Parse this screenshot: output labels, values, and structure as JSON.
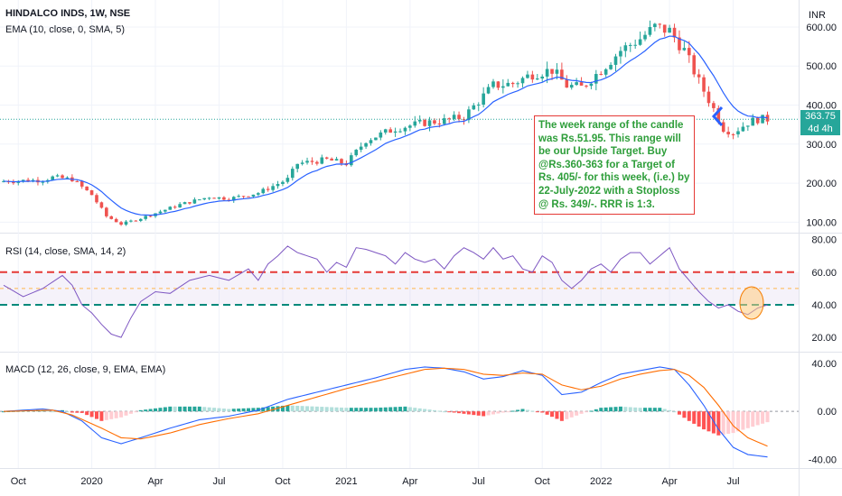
{
  "header": {
    "symbol_line": "HINDALCO INDS, 1W, NSE",
    "ema_label": "EMA (10, close, 0, SMA, 5)",
    "rsi_label": "RSI (14, close, SMA, 14, 2)",
    "macd_label": "MACD (12, 26, close, 9, EMA, EMA)",
    "currency": "INR"
  },
  "price_badge": {
    "price": "363.75",
    "countdown": "4d 4h"
  },
  "annotation": {
    "text": "The week range of the candle was Rs.51.95. This range will be our Upside Target. Buy @Rs.360-363 for a Target of Rs. 405/- for this week, (i.e.) by 22-July-2022 with a Stoploss @ Rs. 349/-. RRR is 1:3."
  },
  "colors": {
    "up": "#26a69a",
    "down": "#ef5350",
    "ema": "#2962ff",
    "rsi": "#7e57c2",
    "macd": "#2962ff",
    "signal": "#ff6d00",
    "hist_up_strong": "#26a69a",
    "hist_up_weak": "#b2dfdb",
    "hist_down_strong": "#ff5252",
    "hist_down_weak": "#ffcdd2",
    "level_high": "#e53935",
    "level_low": "#00897b",
    "last_price_line": "#26a69a",
    "annotation_text": "#2e9e3a"
  },
  "chart_data": [
    {
      "type": "candlestick",
      "title": "HINDALCO INDS, 1W, NSE",
      "indicator": "EMA (10, close, 0, SMA, 5)",
      "x_ticks": [
        "Oct",
        "2020",
        "Apr",
        "Jul",
        "Oct",
        "2021",
        "Apr",
        "Jul",
        "Oct",
        "2022",
        "Apr",
        "Jul"
      ],
      "y_ticks": [
        100,
        200,
        300,
        400,
        500,
        600
      ],
      "y_tick_labels": [
        "100.00",
        "200.00",
        "300.00",
        "400.00",
        "500.00",
        "600.00"
      ],
      "ylim": [
        80,
        660
      ],
      "currency": "INR",
      "last_price": 363.75,
      "close_anchors": [
        [
          0,
          205
        ],
        [
          8,
          208
        ],
        [
          10,
          215
        ],
        [
          14,
          210
        ],
        [
          18,
          170
        ],
        [
          21,
          115
        ],
        [
          24,
          95
        ],
        [
          28,
          110
        ],
        [
          36,
          145
        ],
        [
          42,
          165
        ],
        [
          46,
          160
        ],
        [
          52,
          175
        ],
        [
          58,
          210
        ],
        [
          60,
          250
        ],
        [
          66,
          260
        ],
        [
          70,
          250
        ],
        [
          74,
          310
        ],
        [
          80,
          340
        ],
        [
          86,
          355
        ],
        [
          90,
          360
        ],
        [
          94,
          370
        ],
        [
          100,
          450
        ],
        [
          104,
          455
        ],
        [
          108,
          480
        ],
        [
          112,
          490
        ],
        [
          115,
          450
        ],
        [
          118,
          445
        ],
        [
          122,
          490
        ],
        [
          126,
          540
        ],
        [
          130,
          570
        ],
        [
          133,
          600
        ],
        [
          136,
          590
        ],
        [
          139,
          540
        ],
        [
          142,
          460
        ],
        [
          145,
          390
        ],
        [
          147,
          340
        ],
        [
          149,
          330
        ],
        [
          152,
          355
        ],
        [
          154,
          364
        ]
      ]
    },
    {
      "type": "line",
      "title": "RSI (14, close, SMA, 14, 2)",
      "y_ticks": [
        20,
        40,
        60,
        80
      ],
      "y_tick_labels": [
        "20.00",
        "40.00",
        "60.00",
        "80.00"
      ],
      "ylim": [
        14,
        82
      ],
      "levels": [
        60,
        50,
        40
      ],
      "anchors": [
        [
          0,
          52
        ],
        [
          4,
          45
        ],
        [
          8,
          50
        ],
        [
          12,
          58
        ],
        [
          14,
          52
        ],
        [
          16,
          40
        ],
        [
          18,
          35
        ],
        [
          20,
          28
        ],
        [
          22,
          22
        ],
        [
          24,
          20
        ],
        [
          26,
          32
        ],
        [
          28,
          42
        ],
        [
          31,
          48
        ],
        [
          34,
          47
        ],
        [
          38,
          55
        ],
        [
          42,
          58
        ],
        [
          46,
          55
        ],
        [
          50,
          62
        ],
        [
          52,
          55
        ],
        [
          54,
          65
        ],
        [
          56,
          70
        ],
        [
          58,
          76
        ],
        [
          60,
          72
        ],
        [
          62,
          70
        ],
        [
          64,
          68
        ],
        [
          66,
          60
        ],
        [
          68,
          66
        ],
        [
          70,
          63
        ],
        [
          72,
          75
        ],
        [
          74,
          74
        ],
        [
          76,
          72
        ],
        [
          78,
          70
        ],
        [
          80,
          65
        ],
        [
          82,
          72
        ],
        [
          84,
          68
        ],
        [
          86,
          66
        ],
        [
          88,
          68
        ],
        [
          90,
          62
        ],
        [
          92,
          70
        ],
        [
          94,
          75
        ],
        [
          96,
          72
        ],
        [
          98,
          68
        ],
        [
          100,
          75
        ],
        [
          102,
          68
        ],
        [
          104,
          70
        ],
        [
          106,
          62
        ],
        [
          108,
          60
        ],
        [
          110,
          70
        ],
        [
          112,
          66
        ],
        [
          114,
          55
        ],
        [
          116,
          50
        ],
        [
          118,
          55
        ],
        [
          120,
          62
        ],
        [
          122,
          65
        ],
        [
          124,
          60
        ],
        [
          126,
          68
        ],
        [
          128,
          72
        ],
        [
          130,
          72
        ],
        [
          132,
          65
        ],
        [
          134,
          70
        ],
        [
          136,
          75
        ],
        [
          138,
          62
        ],
        [
          140,
          55
        ],
        [
          142,
          48
        ],
        [
          144,
          42
        ],
        [
          146,
          38
        ],
        [
          148,
          40
        ],
        [
          150,
          36
        ],
        [
          152,
          34
        ],
        [
          154,
          38
        ],
        [
          156,
          40
        ]
      ]
    },
    {
      "type": "line",
      "title": "MACD (12, 26, close, 9, EMA, EMA)",
      "series": [
        {
          "name": "MACD",
          "anchors": [
            [
              0,
              0
            ],
            [
              8,
              2
            ],
            [
              12,
              0
            ],
            [
              16,
              -8
            ],
            [
              20,
              -22
            ],
            [
              24,
              -27
            ],
            [
              28,
              -22
            ],
            [
              34,
              -14
            ],
            [
              40,
              -7
            ],
            [
              46,
              -4
            ],
            [
              52,
              1
            ],
            [
              58,
              10
            ],
            [
              64,
              16
            ],
            [
              70,
              22
            ],
            [
              76,
              28
            ],
            [
              82,
              35
            ],
            [
              86,
              37
            ],
            [
              90,
              36
            ],
            [
              94,
              33
            ],
            [
              98,
              27
            ],
            [
              102,
              29
            ],
            [
              106,
              34
            ],
            [
              110,
              30
            ],
            [
              114,
              14
            ],
            [
              118,
              16
            ],
            [
              122,
              24
            ],
            [
              126,
              31
            ],
            [
              130,
              34
            ],
            [
              134,
              37
            ],
            [
              137,
              35
            ],
            [
              140,
              22
            ],
            [
              143,
              5
            ],
            [
              146,
              -15
            ],
            [
              149,
              -30
            ],
            [
              152,
              -36
            ],
            [
              156,
              -38
            ]
          ]
        },
        {
          "name": "Signal",
          "anchors": [
            [
              0,
              0
            ],
            [
              10,
              1
            ],
            [
              14,
              -3
            ],
            [
              20,
              -14
            ],
            [
              24,
              -22
            ],
            [
              28,
              -23
            ],
            [
              34,
              -18
            ],
            [
              40,
              -11
            ],
            [
              46,
              -6
            ],
            [
              52,
              -2
            ],
            [
              58,
              5
            ],
            [
              64,
              12
            ],
            [
              70,
              19
            ],
            [
              76,
              25
            ],
            [
              82,
              31
            ],
            [
              86,
              35
            ],
            [
              90,
              36
            ],
            [
              94,
              35
            ],
            [
              98,
              31
            ],
            [
              102,
              30
            ],
            [
              106,
              32
            ],
            [
              110,
              31
            ],
            [
              114,
              22
            ],
            [
              118,
              18
            ],
            [
              122,
              21
            ],
            [
              126,
              27
            ],
            [
              130,
              31
            ],
            [
              134,
              34
            ],
            [
              137,
              35
            ],
            [
              140,
              30
            ],
            [
              143,
              20
            ],
            [
              146,
              5
            ],
            [
              149,
              -12
            ],
            [
              152,
              -22
            ],
            [
              156,
              -29
            ]
          ]
        }
      ],
      "y_ticks": [
        -40,
        0,
        40
      ],
      "y_tick_labels": [
        "-40.00",
        "0.00",
        "40.00"
      ],
      "ylim": [
        -45,
        46
      ]
    }
  ]
}
